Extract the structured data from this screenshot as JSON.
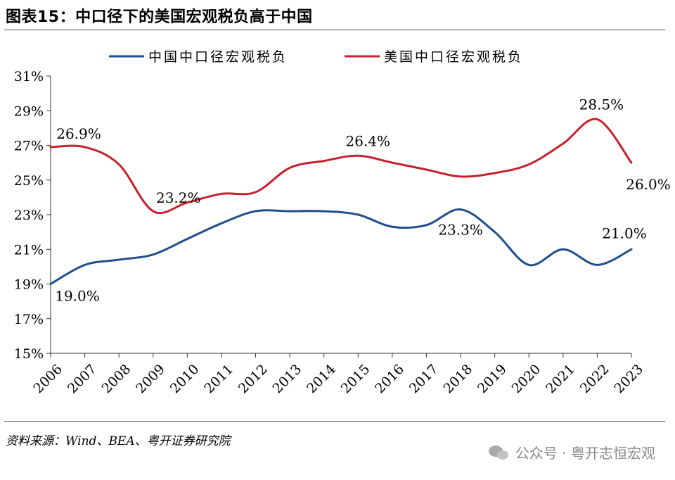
{
  "title": "图表15：中口径下的美国宏观税负高于中国",
  "source": "资料来源：Wind、BEA、粤开证券研究院",
  "watermark": {
    "text": "公众号 · 粤开志恒宏观",
    "icon": "wechat-icon"
  },
  "chart_data": {
    "type": "line",
    "x": [
      2006,
      2007,
      2008,
      2009,
      2010,
      2011,
      2012,
      2013,
      2014,
      2015,
      2016,
      2017,
      2018,
      2019,
      2020,
      2021,
      2022,
      2023
    ],
    "ylim": [
      15,
      31
    ],
    "yticks": [
      "15%",
      "17%",
      "19%",
      "21%",
      "23%",
      "25%",
      "27%",
      "29%",
      "31%"
    ],
    "legend_position": "top",
    "grid": false,
    "series": [
      {
        "name": "中国中口径宏观税负",
        "color": "#1f4e8c",
        "values": [
          19.0,
          20.1,
          20.4,
          20.7,
          21.6,
          22.5,
          23.2,
          23.2,
          23.2,
          23.0,
          22.3,
          22.4,
          23.3,
          22.0,
          20.1,
          21.0,
          20.1,
          21.0
        ]
      },
      {
        "name": "美国中口径宏观税负",
        "color": "#c8202d",
        "values": [
          26.9,
          26.9,
          25.9,
          23.2,
          23.7,
          24.2,
          24.3,
          25.7,
          26.1,
          26.4,
          26.0,
          25.6,
          25.2,
          25.4,
          25.9,
          27.1,
          28.5,
          26.0
        ]
      }
    ],
    "annotations": [
      {
        "series": 0,
        "x": 2006,
        "label": "19.0%"
      },
      {
        "series": 0,
        "x": 2018,
        "label": "23.3%"
      },
      {
        "series": 0,
        "x": 2023,
        "label": "21.0%"
      },
      {
        "series": 1,
        "x": 2006,
        "label": "26.9%"
      },
      {
        "series": 1,
        "x": 2009,
        "label": "23.2%"
      },
      {
        "series": 1,
        "x": 2015,
        "label": "26.4%"
      },
      {
        "series": 1,
        "x": 2022,
        "label": "28.5%"
      },
      {
        "series": 1,
        "x": 2023,
        "label": "26.0%"
      }
    ]
  }
}
